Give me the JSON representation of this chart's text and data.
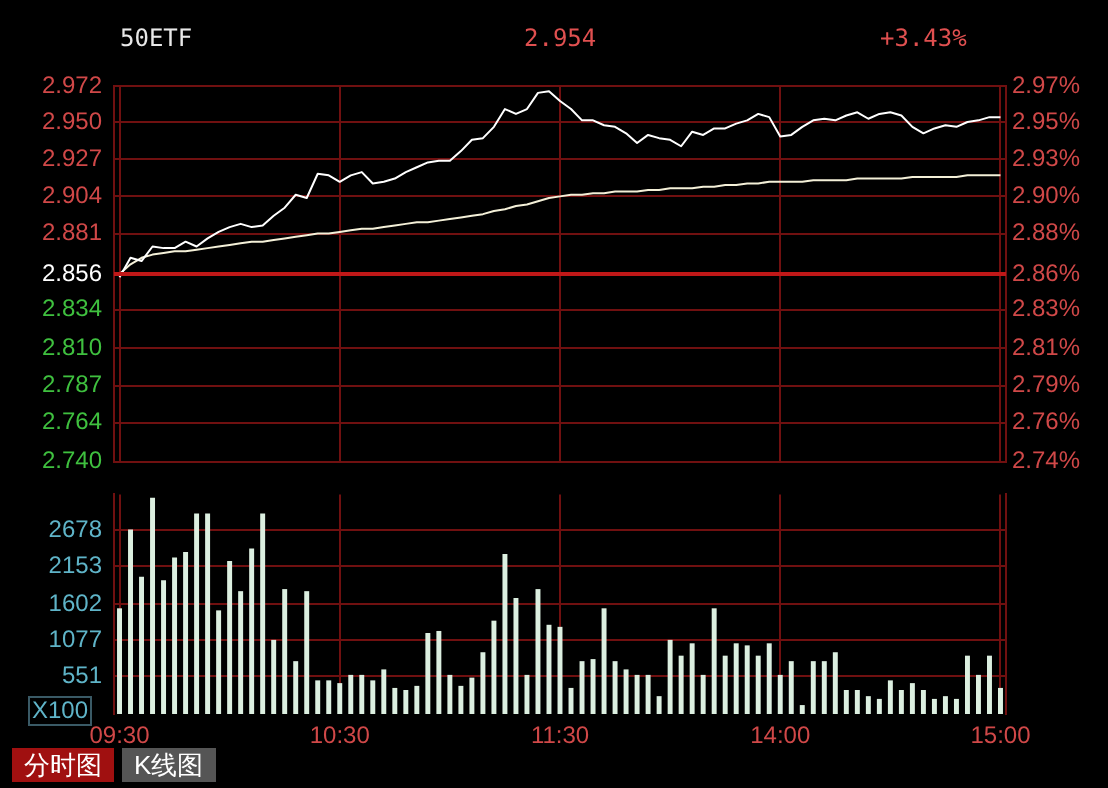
{
  "chart_data": [
    {
      "type": "line",
      "title": "50ETF",
      "annotations": [
        "2.954",
        "+3.43%"
      ],
      "categories": [
        null,
        null,
        null,
        null,
        null,
        null,
        null,
        null,
        null,
        null,
        null,
        null,
        null,
        null,
        null,
        null,
        null,
        null,
        null,
        null,
        null,
        null,
        null,
        null,
        null,
        null,
        null,
        null,
        null,
        null,
        null,
        null,
        null,
        null,
        null,
        null,
        null,
        null,
        null,
        null,
        null,
        null,
        null,
        null,
        null,
        null,
        null,
        null,
        null,
        null,
        null,
        null,
        null,
        null,
        null,
        null,
        null,
        null,
        null,
        null,
        null,
        null,
        null,
        null,
        null,
        null,
        null,
        null,
        null,
        null,
        null,
        null,
        null,
        null,
        null,
        null,
        null,
        null,
        null,
        null,
        null
      ],
      "series": [
        {
          "color": "#ffffff",
          "values": [
            2.854,
            2.866,
            2.864,
            2.873,
            2.872,
            2.872,
            2.876,
            2.873,
            2.878,
            2.882,
            2.885,
            2.887,
            2.885,
            2.886,
            2.892,
            2.897,
            2.905,
            2.903,
            2.918,
            2.917,
            2.913,
            2.917,
            2.919,
            2.912,
            2.913,
            2.915,
            2.919,
            2.922,
            2.925,
            2.926,
            2.926,
            2.932,
            2.939,
            2.94,
            2.947,
            2.958,
            2.955,
            2.958,
            2.968,
            2.969,
            2.963,
            2.958,
            2.951,
            2.951,
            2.948,
            2.947,
            2.943,
            2.937,
            2.942,
            2.94,
            2.939,
            2.935,
            2.944,
            2.942,
            2.946,
            2.946,
            2.949,
            2.951,
            2.955,
            2.953,
            2.941,
            2.942,
            2.947,
            2.951,
            2.952,
            2.951,
            2.954,
            2.956,
            2.952,
            2.955,
            2.956,
            2.954,
            2.947,
            2.943,
            2.946,
            2.948,
            2.947,
            2.95,
            2.951,
            2.953,
            2.953
          ]
        },
        {
          "color": "#f4f0d8",
          "values": [
            2.856,
            2.862,
            2.866,
            2.868,
            2.869,
            2.87,
            2.87,
            2.871,
            2.872,
            2.873,
            2.874,
            2.875,
            2.876,
            2.876,
            2.877,
            2.878,
            2.879,
            2.88,
            2.881,
            2.881,
            2.882,
            2.883,
            2.884,
            2.884,
            2.885,
            2.886,
            2.887,
            2.888,
            2.888,
            2.889,
            2.89,
            2.891,
            2.892,
            2.893,
            2.895,
            2.896,
            2.898,
            2.899,
            2.901,
            2.903,
            2.904,
            2.905,
            2.905,
            2.906,
            2.906,
            2.907,
            2.907,
            2.907,
            2.908,
            2.908,
            2.909,
            2.909,
            2.909,
            2.91,
            2.91,
            2.911,
            2.911,
            2.912,
            2.912,
            2.913,
            2.913,
            2.913,
            2.913,
            2.914,
            2.914,
            2.914,
            2.914,
            2.915,
            2.915,
            2.915,
            2.915,
            2.915,
            2.916,
            2.916,
            2.916,
            2.916,
            2.916,
            2.917,
            2.917,
            2.917,
            2.917
          ]
        }
      ],
      "ylim": [
        2.74,
        2.972
      ],
      "yticks": [
        2.972,
        {
          "value": 2.95,
          "label": "2.950"
        },
        2.927,
        2.904,
        2.881,
        2.856,
        2.834,
        {
          "value": 2.81,
          "label": "2.810"
        },
        2.787,
        2.764,
        {
          "value": 2.74,
          "label": "2.740"
        }
      ],
      "y2lim": [
        2.74,
        2.972
      ],
      "y2ticks": [
        {
          "value": 2.972,
          "label": "2.97%"
        },
        {
          "value": 2.95,
          "label": "2.95%"
        },
        {
          "value": 2.927,
          "label": "2.93%"
        },
        {
          "value": 2.904,
          "label": "2.90%"
        },
        {
          "value": 2.881,
          "label": "2.88%"
        },
        {
          "value": 2.856,
          "label": "2.86%"
        },
        {
          "value": 2.834,
          "label": "2.83%"
        },
        {
          "value": 2.81,
          "label": "2.81%"
        },
        {
          "value": 2.787,
          "label": "2.79%"
        },
        {
          "value": 2.764,
          "label": "2.76%"
        },
        {
          "value": 2.74,
          "label": "2.74%"
        }
      ],
      "ref_lines": [
        {
          "axis": "y",
          "value": 2.856,
          "color": "#c01818"
        }
      ],
      "grid": true,
      "legend": false,
      "marker": "none",
      "line_style": "solid",
      "tick_labels": "y"
    },
    {
      "type": "bar",
      "ylabel": "X100",
      "annotations": [
        "分时图",
        "K线图"
      ],
      "categories": [
        "09:30",
        null,
        null,
        null,
        null,
        null,
        null,
        null,
        null,
        null,
        null,
        null,
        null,
        null,
        null,
        null,
        null,
        null,
        null,
        null,
        "10:30",
        null,
        null,
        null,
        null,
        null,
        null,
        null,
        null,
        null,
        null,
        null,
        null,
        null,
        null,
        null,
        null,
        null,
        null,
        null,
        "11:30",
        null,
        null,
        null,
        null,
        null,
        null,
        null,
        null,
        null,
        null,
        null,
        null,
        null,
        null,
        null,
        null,
        null,
        null,
        null,
        "14:00",
        null,
        null,
        null,
        null,
        null,
        null,
        null,
        null,
        null,
        null,
        null,
        null,
        null,
        null,
        null,
        null,
        null,
        null,
        null,
        "15:00"
      ],
      "values": [
        1540,
        2690,
        2000,
        3150,
        1950,
        2280,
        2360,
        2920,
        2920,
        1510,
        2230,
        1790,
        2410,
        2920,
        1080,
        1820,
        770,
        1790,
        490,
        490,
        450,
        570,
        570,
        490,
        650,
        380,
        350,
        410,
        1180,
        1210,
        570,
        410,
        530,
        900,
        1360,
        2330,
        1690,
        570,
        1820,
        1300,
        1270,
        380,
        770,
        800,
        1540,
        770,
        650,
        570,
        570,
        260,
        1080,
        850,
        1030,
        570,
        1540,
        850,
        1030,
        1000,
        850,
        1030,
        570,
        770,
        130,
        770,
        770,
        900,
        350,
        350,
        260,
        220,
        490,
        350,
        450,
        350,
        220,
        260,
        220,
        850,
        570,
        850,
        380
      ],
      "color": "#dcefe0",
      "ylim": [
        0,
        3200
      ],
      "yticks": [
        551,
        1077,
        1602,
        2153,
        2678
      ],
      "grid": true,
      "legend": false
    }
  ]
}
